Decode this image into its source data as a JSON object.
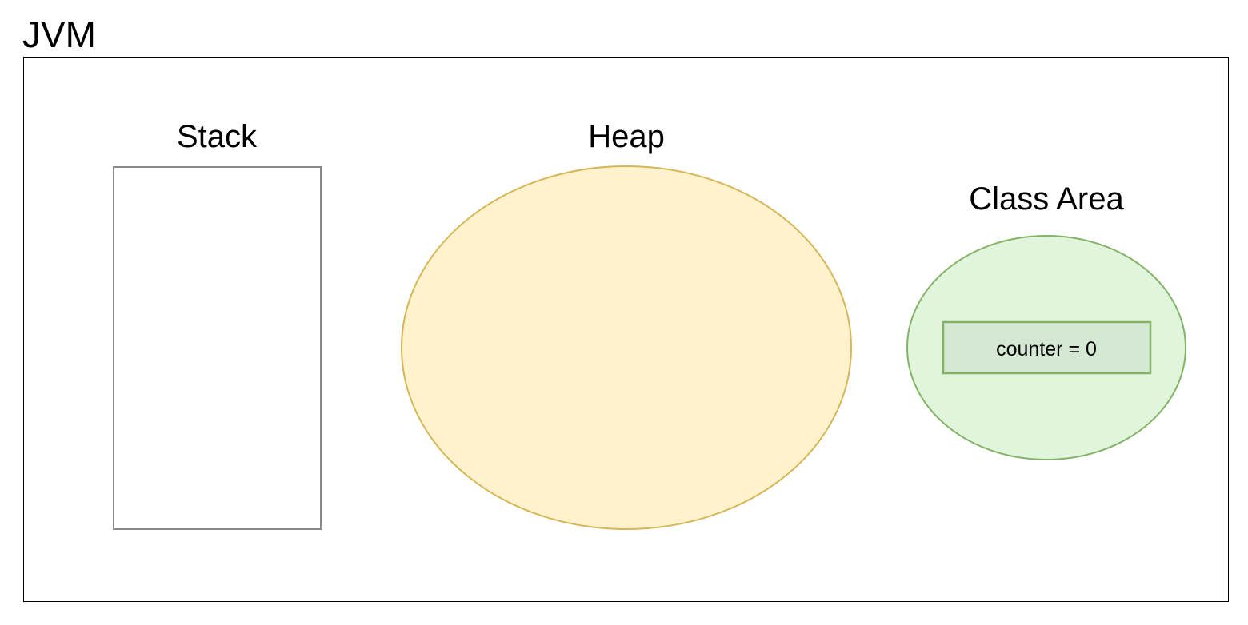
{
  "diagram": {
    "title": "JVM",
    "stack": {
      "label": "Stack"
    },
    "heap": {
      "label": "Heap"
    },
    "class_area": {
      "label": "Class Area",
      "variable": "counter = 0"
    }
  },
  "colors": {
    "frame_stroke": "#000000",
    "stack_stroke": "#888888",
    "heap_fill": "#fff2cc",
    "heap_stroke": "#d6b656",
    "class_area_fill": "#e1f4dc",
    "class_area_stroke": "#82b366",
    "variable_fill": "#d5e8d4",
    "variable_stroke": "#82b366"
  }
}
